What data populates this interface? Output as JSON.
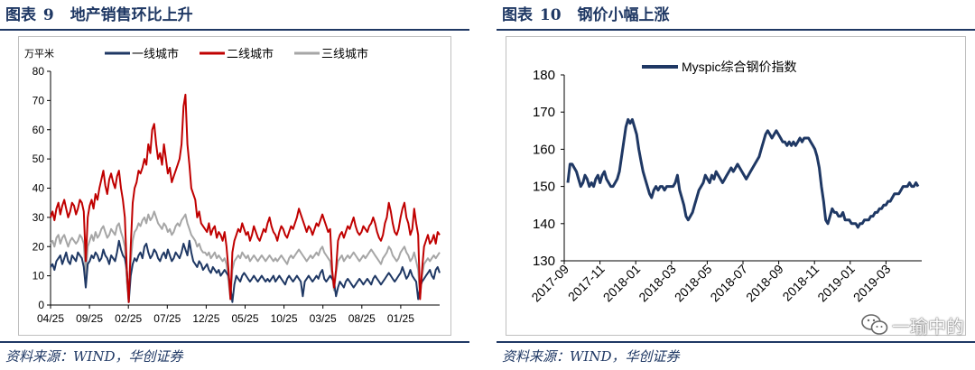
{
  "left": {
    "figure_label": "图表",
    "figure_number": "9",
    "figure_title": "地产销售环比上升",
    "source": "资料来源：WIND，华创证券"
  },
  "right": {
    "figure_label": "图表",
    "figure_number": "10",
    "figure_title": "钢价小幅上涨",
    "source": "资料来源：WIND，华创证券"
  },
  "watermark": "一瑜中的",
  "colors": {
    "title": "#1f3864",
    "tier1": "#1f3864",
    "tier2": "#c00000",
    "tier3": "#a6a6a6",
    "steel": "#1f3864"
  },
  "chart_data": [
    {
      "type": "line",
      "title": "",
      "unit": "万平米",
      "ylim": [
        0,
        80
      ],
      "y_ticks": [
        0,
        10,
        20,
        30,
        40,
        50,
        60,
        70,
        80
      ],
      "x_ticks": [
        "04/25",
        "09/25",
        "02/25",
        "07/25",
        "12/25",
        "05/25",
        "10/25",
        "03/25",
        "08/25",
        "01/25"
      ],
      "x_count": 200,
      "legend": "top",
      "series": [
        {
          "name": "一线城市",
          "color": "#1f3864",
          "values": [
            13,
            14,
            12,
            15,
            16,
            17,
            14,
            16,
            18,
            15,
            14,
            17,
            16,
            15,
            18,
            17,
            16,
            13,
            6,
            14,
            15,
            17,
            16,
            18,
            17,
            15,
            16,
            19,
            17,
            16,
            14,
            17,
            16,
            15,
            18,
            22,
            19,
            17,
            16,
            12,
            1,
            10,
            14,
            16,
            15,
            17,
            18,
            16,
            20,
            21,
            18,
            16,
            17,
            19,
            18,
            16,
            15,
            17,
            18,
            16,
            19,
            17,
            15,
            16,
            18,
            17,
            16,
            18,
            21,
            19,
            17,
            22,
            18,
            15,
            14,
            13,
            15,
            14,
            12,
            13,
            14,
            12,
            11,
            13,
            12,
            11,
            12,
            10,
            11,
            12,
            11,
            10,
            6,
            1,
            7,
            10,
            9,
            8,
            10,
            11,
            10,
            9,
            8,
            9,
            10,
            9,
            8,
            9,
            10,
            9,
            8,
            9,
            8,
            9,
            10,
            8,
            9,
            10,
            9,
            8,
            7,
            9,
            10,
            9,
            8,
            9,
            10,
            9,
            8,
            3,
            8,
            9,
            10,
            9,
            8,
            9,
            10,
            9,
            11,
            12,
            9,
            8,
            9,
            10,
            9,
            8,
            3,
            6,
            8,
            7,
            6,
            8,
            9,
            8,
            7,
            6,
            7,
            8,
            9,
            8,
            7,
            8,
            9,
            8,
            7,
            9,
            10,
            9,
            8,
            7,
            8,
            9,
            10,
            11,
            10,
            9,
            8,
            9,
            10,
            11,
            13,
            11,
            9,
            10,
            12,
            10,
            9,
            8,
            2,
            6,
            8,
            9,
            10,
            11,
            12,
            10,
            9,
            12,
            13,
            11
          ]
        },
        {
          "name": "二线城市",
          "color": "#c00000",
          "values": [
            30,
            32,
            29,
            33,
            35,
            31,
            34,
            36,
            33,
            30,
            32,
            35,
            34,
            31,
            33,
            36,
            35,
            32,
            15,
            30,
            34,
            36,
            33,
            38,
            36,
            40,
            43,
            46,
            41,
            38,
            43,
            45,
            42,
            40,
            44,
            46,
            40,
            36,
            30,
            12,
            1,
            20,
            35,
            40,
            42,
            46,
            45,
            47,
            50,
            48,
            55,
            52,
            60,
            62,
            55,
            50,
            52,
            48,
            55,
            50,
            45,
            47,
            42,
            44,
            46,
            48,
            50,
            55,
            68,
            72,
            55,
            48,
            40,
            38,
            36,
            30,
            32,
            28,
            27,
            26,
            25,
            28,
            24,
            26,
            27,
            23,
            25,
            24,
            22,
            25,
            20,
            12,
            2,
            18,
            22,
            24,
            26,
            25,
            28,
            26,
            24,
            25,
            22,
            24,
            27,
            25,
            23,
            22,
            24,
            26,
            25,
            28,
            30,
            27,
            25,
            24,
            22,
            25,
            27,
            26,
            24,
            23,
            25,
            27,
            26,
            28,
            30,
            33,
            31,
            29,
            27,
            25,
            27,
            26,
            24,
            26,
            28,
            27,
            29,
            31,
            29,
            27,
            25,
            26,
            12,
            6,
            12,
            22,
            24,
            25,
            23,
            25,
            27,
            26,
            28,
            30,
            27,
            25,
            24,
            25,
            27,
            26,
            25,
            27,
            28,
            30,
            28,
            25,
            23,
            22,
            24,
            28,
            30,
            35,
            32,
            28,
            25,
            24,
            26,
            30,
            33,
            35,
            30,
            28,
            24,
            26,
            33,
            28,
            24,
            2,
            12,
            20,
            22,
            24,
            21,
            22,
            24,
            21,
            25,
            24
          ]
        },
        {
          "name": "三线城市",
          "color": "#a6a6a6",
          "values": [
            21,
            22,
            20,
            23,
            24,
            21,
            23,
            24,
            22,
            20,
            22,
            23,
            22,
            21,
            22,
            24,
            23,
            21,
            10,
            20,
            22,
            24,
            22,
            25,
            23,
            24,
            26,
            27,
            25,
            23,
            24,
            26,
            25,
            24,
            27,
            28,
            25,
            23,
            20,
            8,
            1,
            15,
            22,
            25,
            26,
            28,
            27,
            29,
            30,
            28,
            31,
            29,
            30,
            32,
            30,
            28,
            27,
            26,
            28,
            27,
            25,
            26,
            24,
            25,
            27,
            28,
            27,
            29,
            30,
            31,
            28,
            26,
            24,
            23,
            22,
            20,
            21,
            19,
            18,
            18,
            17,
            18,
            16,
            17,
            18,
            16,
            17,
            16,
            15,
            16,
            14,
            8,
            2,
            12,
            15,
            16,
            17,
            16,
            18,
            17,
            16,
            17,
            15,
            16,
            17,
            16,
            15,
            16,
            17,
            16,
            15,
            16,
            17,
            16,
            15,
            16,
            15,
            16,
            17,
            16,
            15,
            14,
            16,
            17,
            16,
            17,
            18,
            19,
            18,
            17,
            16,
            15,
            16,
            17,
            16,
            17,
            18,
            17,
            19,
            20,
            18,
            17,
            16,
            15,
            10,
            5,
            11,
            15,
            16,
            17,
            15,
            16,
            17,
            16,
            17,
            18,
            17,
            16,
            15,
            16,
            17,
            16,
            17,
            18,
            19,
            18,
            17,
            16,
            15,
            14,
            16,
            17,
            18,
            20,
            19,
            17,
            16,
            15,
            16,
            18,
            19,
            20,
            18,
            17,
            15,
            16,
            18,
            15,
            12,
            3,
            10,
            14,
            15,
            16,
            15,
            16,
            17,
            16,
            17,
            18
          ]
        }
      ]
    },
    {
      "type": "line",
      "title": "",
      "ylim": [
        130,
        180
      ],
      "y_ticks": [
        130,
        140,
        150,
        160,
        170,
        180
      ],
      "x_ticks": [
        "2017-09",
        "2017-11",
        "2018-01",
        "2018-03",
        "2018-05",
        "2018-07",
        "2018-09",
        "2018-11",
        "2019-01",
        "2019-03"
      ],
      "legend": "top-left",
      "series": [
        {
          "name": "Myspic综合钢价指数",
          "color": "#1f3864",
          "values": [
            151,
            156,
            156,
            155,
            154,
            152,
            150,
            151,
            153,
            152,
            150,
            151,
            150,
            152,
            153,
            151,
            153,
            154,
            152,
            151,
            150,
            150,
            151,
            152,
            154,
            158,
            162,
            166,
            168,
            167,
            168,
            166,
            164,
            160,
            157,
            154,
            152,
            150,
            148,
            147,
            149,
            150,
            149,
            150,
            150,
            149,
            150,
            150,
            150,
            150,
            151,
            153,
            149,
            147,
            145,
            142,
            141,
            142,
            143,
            145,
            147,
            149,
            150,
            151,
            153,
            152,
            151,
            153,
            152,
            154,
            153,
            152,
            151,
            152,
            153,
            154,
            155,
            154,
            155,
            156,
            155,
            154,
            153,
            152,
            153,
            154,
            155,
            156,
            157,
            158,
            160,
            162,
            164,
            165,
            164,
            163,
            164,
            165,
            164,
            163,
            162,
            162,
            161,
            162,
            161,
            162,
            161,
            162,
            163,
            162,
            163,
            163,
            163,
            162,
            161,
            160,
            158,
            155,
            150,
            146,
            141,
            140,
            142,
            144,
            143,
            143,
            142,
            142,
            143,
            141,
            141,
            141,
            140,
            140,
            140,
            139,
            140,
            140,
            141,
            141,
            141,
            142,
            142,
            143,
            143,
            144,
            144,
            145,
            145,
            146,
            146,
            147,
            148,
            148,
            148,
            149,
            150,
            150,
            150,
            151,
            150,
            150,
            151,
            150
          ]
        }
      ]
    }
  ]
}
